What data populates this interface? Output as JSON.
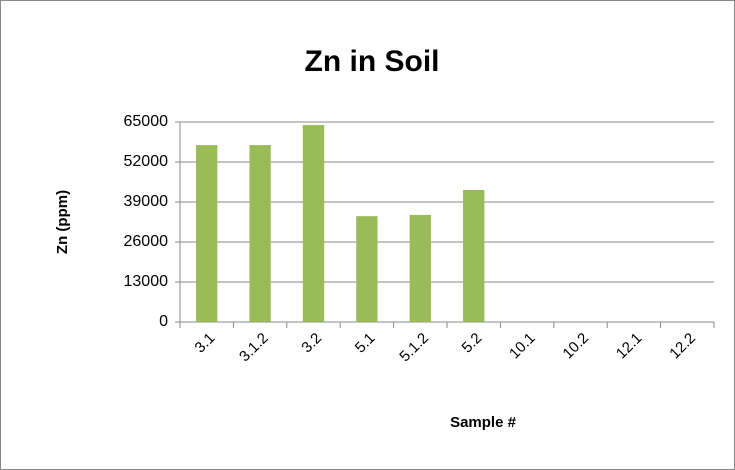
{
  "chart_data": {
    "type": "bar",
    "title": "Zn in Soil",
    "x_label": "Sample #",
    "y_label": "Zn (ppm)",
    "categories": [
      "3.1",
      "3.1.2",
      "3.2",
      "5.1",
      "5.1.2",
      "5.2",
      "10.1",
      "10.2",
      "12.1",
      "12.2"
    ],
    "values": [
      57500,
      57500,
      64000,
      34400,
      34800,
      42900,
      null,
      null,
      null,
      null
    ],
    "color": "#9bbb59",
    "ylim": [
      0,
      65000
    ],
    "yticks": [
      0,
      13000,
      26000,
      39000,
      52000,
      65000
    ],
    "grid": true
  }
}
